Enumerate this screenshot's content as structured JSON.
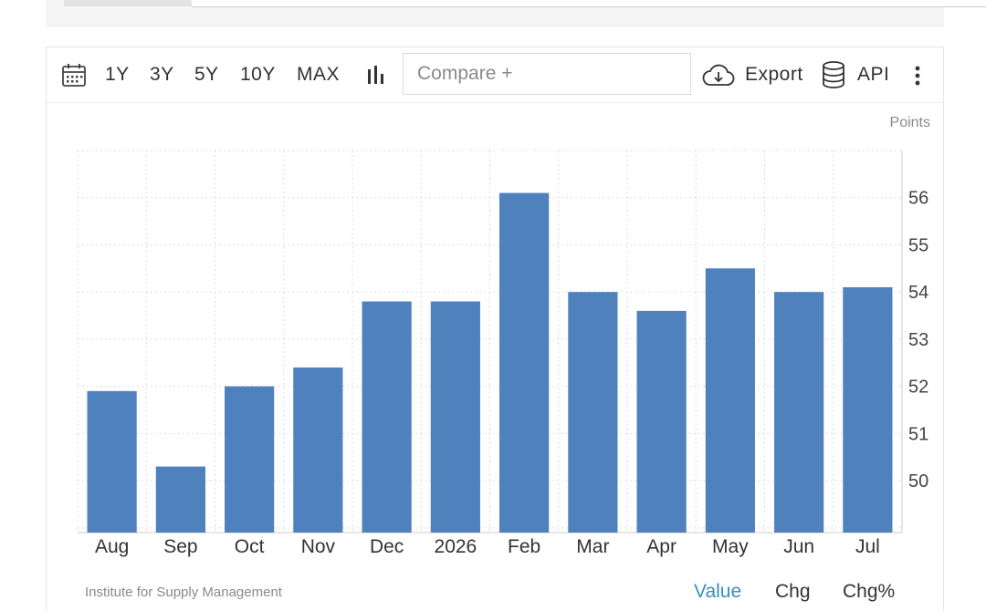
{
  "toolbar": {
    "ranges": [
      "1Y",
      "3Y",
      "5Y",
      "10Y",
      "MAX"
    ],
    "compare_placeholder": "Compare +",
    "export_label": "Export",
    "api_label": "API",
    "icons": [
      "calendar-icon",
      "bar-chart-icon",
      "cloud-download-icon",
      "database-icon",
      "more-vertical-icon"
    ]
  },
  "unit_label": "Points",
  "source": "Institute for Supply Management",
  "footer_tabs": {
    "value": "Value",
    "chg": "Chg",
    "chg_pct": "Chg%"
  },
  "colors": {
    "bar": "#4f81bd",
    "active_tab": "#3a8dbf",
    "grid": "#dddddd"
  },
  "chart_data": {
    "type": "bar",
    "categories": [
      "Aug",
      "Sep",
      "Oct",
      "Nov",
      "Dec",
      "2026",
      "Feb",
      "Mar",
      "Apr",
      "May",
      "Jun",
      "Jul"
    ],
    "values": [
      51.9,
      50.3,
      52.0,
      52.4,
      53.8,
      53.8,
      56.1,
      54.0,
      53.6,
      54.5,
      54.0,
      54.1
    ],
    "yticks": [
      50,
      51,
      52,
      53,
      54,
      55,
      56
    ],
    "ylim": [
      48.9,
      57.0
    ],
    "y_axis_side": "right",
    "grid": true,
    "ylabel": "Points",
    "title": ""
  }
}
